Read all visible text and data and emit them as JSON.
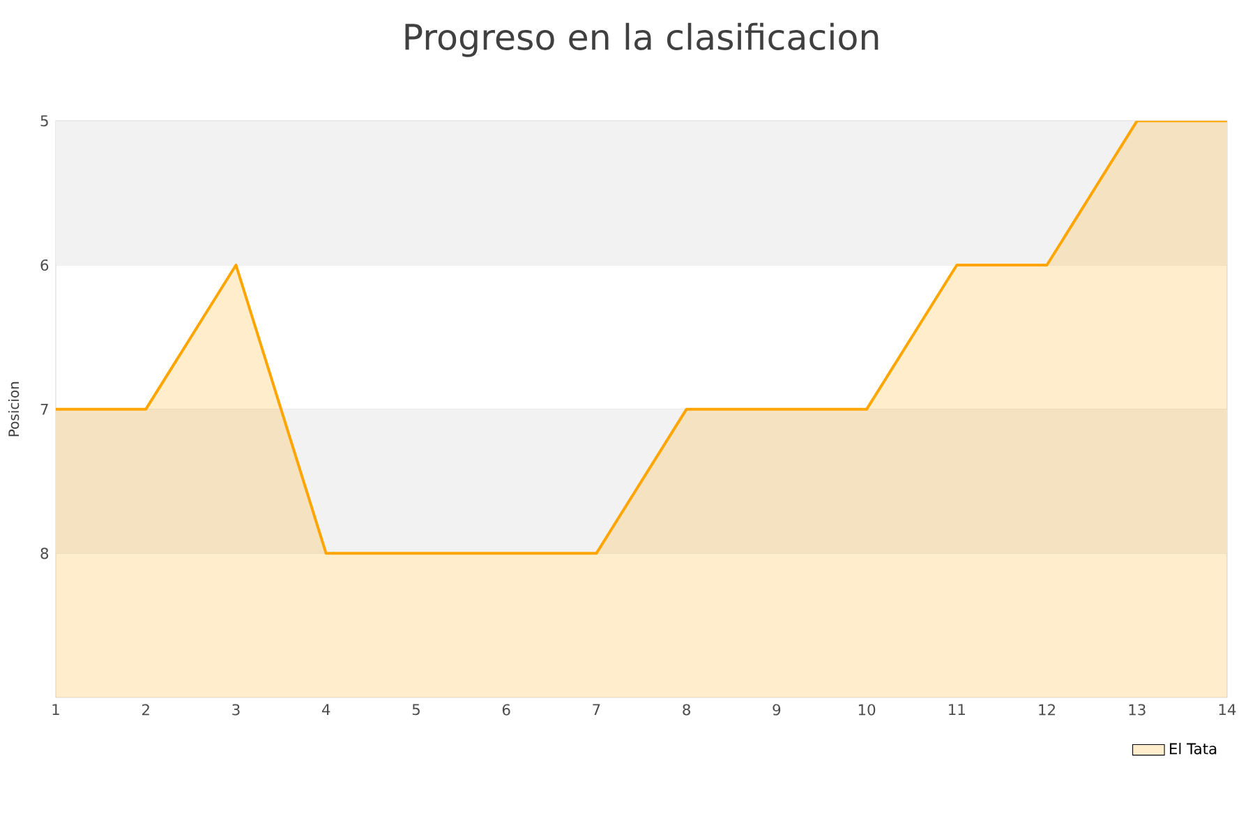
{
  "chart_data": {
    "type": "area",
    "title": "Progreso en la clasificacion",
    "ylabel": "Posicion",
    "x": [
      1,
      2,
      3,
      4,
      5,
      6,
      7,
      8,
      9,
      10,
      11,
      12,
      13,
      14
    ],
    "series": [
      {
        "name": "El Tata",
        "color": "#ffa500",
        "values": [
          7,
          7,
          6,
          8,
          8,
          8,
          8,
          7,
          7,
          7,
          6,
          6,
          5,
          5
        ]
      }
    ],
    "xlim": [
      1,
      14
    ],
    "xticks": [
      1,
      2,
      3,
      4,
      5,
      6,
      7,
      8,
      9,
      10,
      11,
      12,
      13,
      14
    ],
    "ylim": [
      9,
      5
    ],
    "yticks": [
      5,
      6,
      7,
      8
    ],
    "bands": [
      {
        "axis": "y",
        "from": 5,
        "to": 6,
        "color": "#f2f2f2"
      },
      {
        "axis": "y",
        "from": 7,
        "to": 8,
        "color": "#f2f2f2"
      }
    ],
    "grid": "y",
    "legend": "bottom right"
  }
}
